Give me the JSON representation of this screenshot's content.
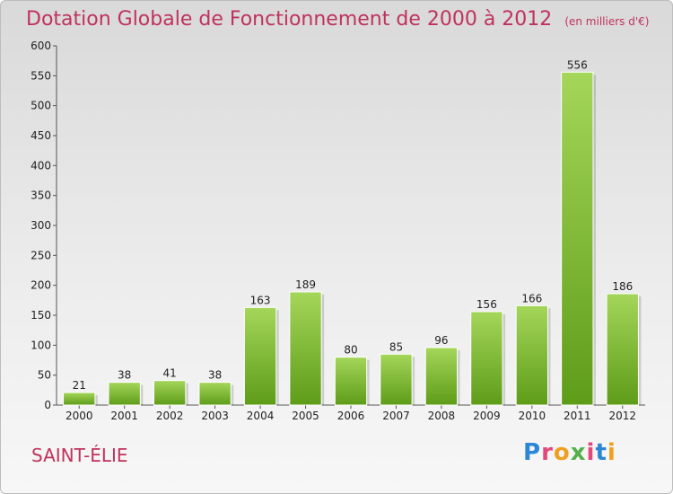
{
  "header": {
    "title": "Dotation Globale de Fonctionnement de 2000 à 2012",
    "unit": "(en milliers d'€)"
  },
  "location": "SAINT-ÉLIE",
  "logo": "Proxiti",
  "colors": {
    "title": "#c0325e",
    "bar_top": "#a4d65a",
    "bar_bottom": "#5e9c18"
  },
  "chart_data": {
    "type": "bar",
    "title": "Dotation Globale de Fonctionnement de 2000 à 2012",
    "unit": "(en milliers d'€)",
    "categories": [
      "2000",
      "2001",
      "2002",
      "2003",
      "2004",
      "2005",
      "2006",
      "2007",
      "2008",
      "2009",
      "2010",
      "2011",
      "2012"
    ],
    "values": [
      21,
      38,
      41,
      38,
      163,
      189,
      80,
      85,
      96,
      156,
      166,
      556,
      186
    ],
    "ylim": [
      0,
      600
    ],
    "yticks": [
      0,
      50,
      100,
      150,
      200,
      250,
      300,
      350,
      400,
      450,
      500,
      550,
      600
    ],
    "grid": false,
    "data_labels": true
  }
}
